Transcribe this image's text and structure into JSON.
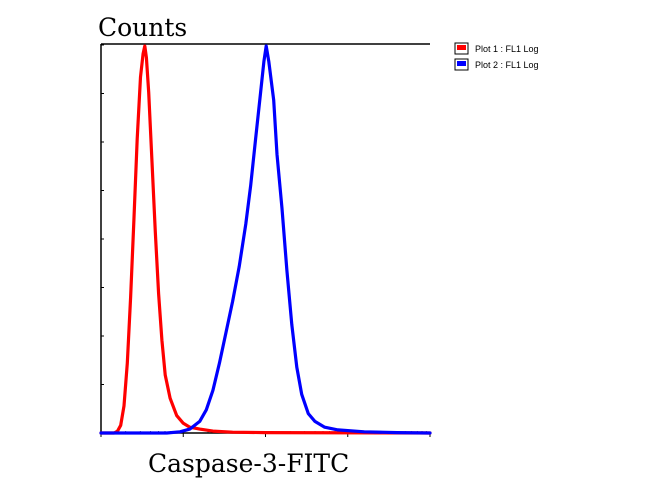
{
  "chart_data": {
    "type": "line",
    "title": "Counts",
    "xlabel": "Caspase-3-FITC",
    "ylabel": "",
    "xlim": [
      0,
      100
    ],
    "ylim": [
      0,
      100
    ],
    "x_scale": "log",
    "grid": false,
    "legend_position": "top-right, outside plot",
    "series": [
      {
        "name": "Plot 1 : FL1 Log",
        "color": "#ff0000",
        "points": [
          [
            0,
            0
          ],
          [
            4,
            0
          ],
          [
            5,
            0.5
          ],
          [
            6,
            2
          ],
          [
            7,
            7
          ],
          [
            8,
            18
          ],
          [
            9,
            35
          ],
          [
            10,
            55
          ],
          [
            11,
            76
          ],
          [
            12,
            92
          ],
          [
            12.8,
            98
          ],
          [
            13.3,
            100
          ],
          [
            13.8,
            97
          ],
          [
            14.5,
            88
          ],
          [
            15.5,
            70
          ],
          [
            16.5,
            52
          ],
          [
            17.5,
            36
          ],
          [
            18.5,
            24
          ],
          [
            19.5,
            15
          ],
          [
            21,
            9
          ],
          [
            23,
            4.5
          ],
          [
            25,
            2.5
          ],
          [
            27,
            1.5
          ],
          [
            30,
            1
          ],
          [
            34,
            0.5
          ],
          [
            40,
            0.2
          ],
          [
            50,
            0.1
          ],
          [
            100,
            0
          ]
        ]
      },
      {
        "name": "Plot 2 : FL1 Log",
        "color": "#0000ff",
        "points": [
          [
            0,
            0
          ],
          [
            20,
            0
          ],
          [
            24,
            0.3
          ],
          [
            27,
            1
          ],
          [
            30,
            3
          ],
          [
            32,
            6
          ],
          [
            34,
            11
          ],
          [
            36,
            18
          ],
          [
            38,
            26
          ],
          [
            40,
            34
          ],
          [
            42,
            43
          ],
          [
            44,
            54
          ],
          [
            45.5,
            64
          ],
          [
            47,
            76
          ],
          [
            48.5,
            88
          ],
          [
            49.5,
            96
          ],
          [
            50.2,
            100
          ],
          [
            51,
            96
          ],
          [
            52.5,
            86
          ],
          [
            53.5,
            72
          ],
          [
            55,
            58
          ],
          [
            56.5,
            42
          ],
          [
            58,
            28
          ],
          [
            59.5,
            17
          ],
          [
            61,
            10
          ],
          [
            63,
            5
          ],
          [
            65,
            3
          ],
          [
            68,
            1.5
          ],
          [
            72,
            0.8
          ],
          [
            80,
            0.3
          ],
          [
            90,
            0.1
          ],
          [
            100,
            0
          ]
        ]
      }
    ]
  }
}
